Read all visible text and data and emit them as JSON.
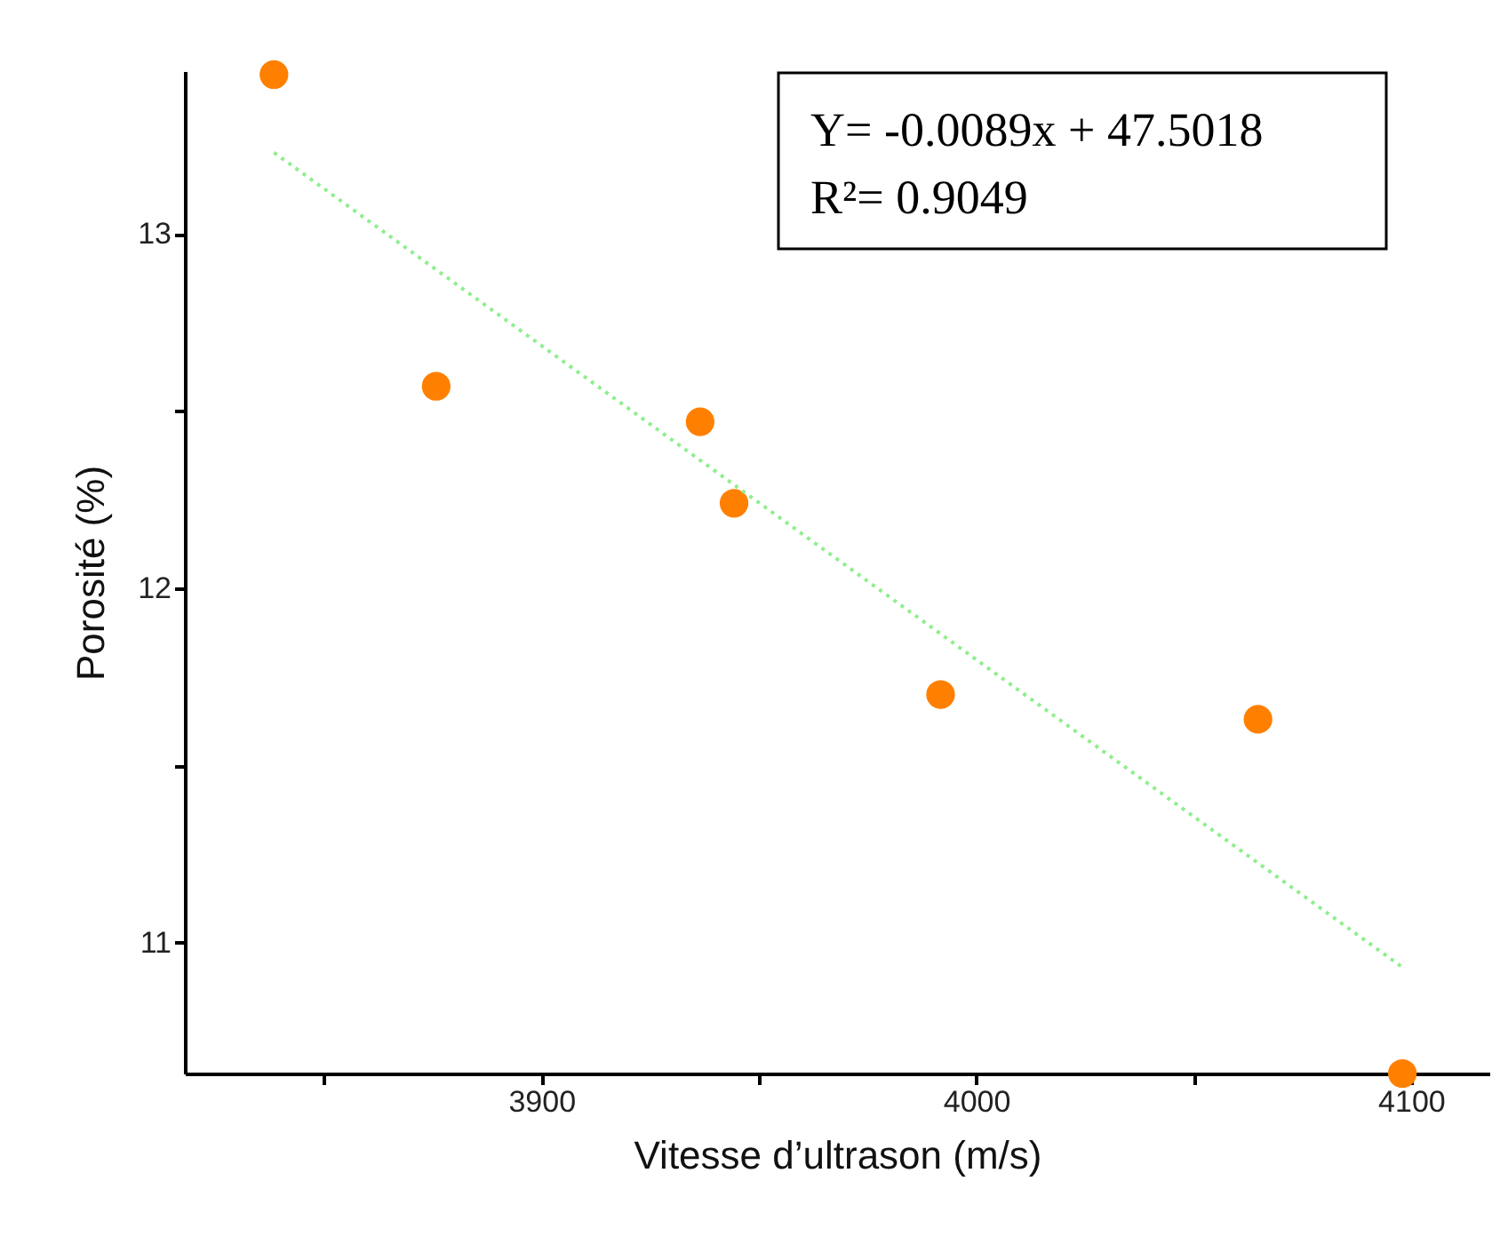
{
  "chart_data": {
    "type": "scatter",
    "xlabel": "Vitesse d’ultrason (m/s)",
    "ylabel": "Porosité (%)",
    "x": [
      3838.5,
      3875.8,
      3936.5,
      3944.3,
      3991.8,
      4064.8,
      4098.0
    ],
    "series": [
      {
        "color": "#ff8000",
        "values": [
          13.45,
          12.57,
          12.47,
          12.24,
          11.7,
          11.63,
          10.63
        ],
        "marker": "circle"
      },
      {
        "type": "line",
        "color": "#90ee90",
        "line_style": "dotted",
        "x": [
          3838.5,
          4098.0
        ],
        "values": [
          13.23,
          10.93
        ]
      }
    ],
    "xlim": [
      3818,
      4118
    ],
    "xticks": [
      {
        "value": 3850,
        "label": null
      },
      3900,
      {
        "value": 3950,
        "label": null
      },
      4000,
      {
        "value": 4050,
        "label": null
      },
      4100
    ],
    "ylim": [
      10.63,
      13.46
    ],
    "yticks": [
      11,
      {
        "value": 11.5,
        "label": null
      },
      12,
      {
        "value": 12.5,
        "label": null
      },
      13
    ],
    "annotations": [
      "Y= -0.0089x + 47.5018",
      "R²= 0.9049"
    ],
    "grid": false
  }
}
